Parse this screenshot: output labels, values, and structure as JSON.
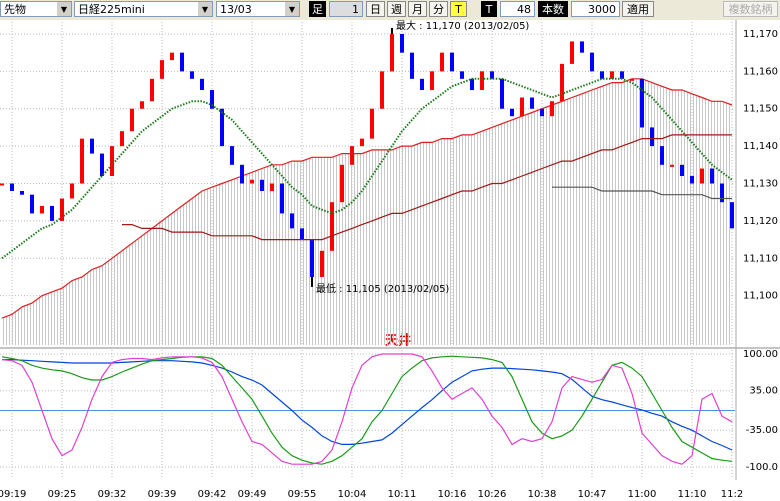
{
  "toolbar": {
    "market": "先物",
    "symbol": "日経225mini",
    "contract": "13/03",
    "bar_label": "足",
    "bar_size": "1",
    "day": "日",
    "week": "週",
    "month": "月",
    "minute": "分",
    "tick": "T",
    "tick2": "T",
    "tick_count": "48",
    "count_label": "本数",
    "count": "3000",
    "apply": "適用",
    "multi": "複数銘柄"
  },
  "chart_data": [
    {
      "type": "combo",
      "categories": [
        null,
        "09:19",
        null,
        null,
        null,
        null,
        "09:25",
        null,
        null,
        null,
        null,
        "09:32",
        null,
        null,
        null,
        null,
        "09:39",
        null,
        null,
        null,
        null,
        "09:42",
        null,
        null,
        null,
        "09:49",
        null,
        null,
        null,
        null,
        "09:55",
        null,
        null,
        null,
        null,
        "10:04",
        null,
        null,
        null,
        null,
        "10:11",
        null,
        null,
        null,
        null,
        "10:16",
        null,
        null,
        null,
        "10:26",
        null,
        null,
        null,
        null,
        "10:38",
        null,
        null,
        null,
        null,
        "10:47",
        null,
        null,
        null,
        null,
        "11:00",
        null,
        null,
        null,
        null,
        "11:10",
        null,
        null,
        null,
        "11:2"
      ],
      "ylim": [
        11086.8,
        11173.2
      ],
      "yticks": [
        {
          "value": 11170,
          "label": "11,170"
        },
        {
          "value": 11160,
          "label": "11,160"
        },
        {
          "value": 11150,
          "label": "11,150"
        },
        {
          "value": 11140,
          "label": "11,140"
        },
        {
          "value": 11130,
          "label": "11,130"
        },
        {
          "value": 11120,
          "label": "11,120"
        },
        {
          "value": 11110,
          "label": "11,110"
        },
        {
          "value": 11100,
          "label": "11,100"
        }
      ],
      "grid": true,
      "series": [
        {
          "type": "candle",
          "up_color": "#ff0000",
          "down_color": "#0000ff",
          "values": [
            11130,
            11128,
            11127,
            11122,
            11124,
            11120,
            11126,
            11130,
            11142,
            11138,
            11132,
            11140,
            11144,
            11150,
            11152,
            11158,
            11163,
            11165,
            11160,
            11158,
            11155,
            11150,
            11140,
            11135,
            11130,
            11131,
            11128,
            11130,
            11122,
            11118,
            11115,
            11105,
            11112,
            11125,
            11135,
            11140,
            11142,
            11150,
            11160,
            11170,
            11165,
            11158,
            11155,
            11160,
            11165,
            11160,
            11158,
            11155,
            11160,
            11158,
            11150,
            11148,
            11153,
            11150,
            11148,
            11152,
            11162,
            11168,
            11165,
            11160,
            11158,
            11160,
            11158,
            11158,
            11145,
            11140,
            11135,
            11135,
            11132,
            11130,
            11134,
            11130,
            11125,
            11118
          ]
        },
        {
          "type": "line",
          "color": "#1a7a1a",
          "dash": "dotted",
          "values": [
            11110,
            11112,
            11114,
            11116,
            11118,
            11119,
            11121,
            11123,
            11126,
            11129,
            11132,
            11135,
            11138,
            11141,
            11144,
            11146,
            11148,
            11150,
            11151,
            11152,
            11152,
            11151,
            11149,
            11147,
            11144,
            11141,
            11138,
            11135,
            11132,
            11129,
            11127,
            11124,
            11123,
            11122,
            11123,
            11125,
            11128,
            11132,
            11136,
            11140,
            11144,
            11147,
            11150,
            11152,
            11154,
            11156,
            11157,
            11158,
            11158,
            11158,
            11158,
            11157,
            11156,
            11155,
            11154,
            11153,
            11154,
            11155,
            11156,
            11157,
            11158,
            11158,
            11158,
            11157,
            11155,
            11153,
            11150,
            11147,
            11144,
            11141,
            11138,
            11135,
            11133,
            11131
          ]
        },
        {
          "type": "line",
          "color": "#e02020",
          "area": true,
          "values": [
            11094,
            11095,
            11097,
            11098,
            11100,
            11101,
            11102,
            11104,
            11105,
            11107,
            11108,
            11110,
            11112,
            11114,
            11116,
            11118,
            11120,
            11122,
            11124,
            11126,
            11128,
            11129,
            11130,
            11131,
            11132,
            11133,
            11134,
            11135,
            11135,
            11136,
            11136,
            11137,
            11137,
            11137,
            11138,
            11138,
            11138,
            11139,
            11139,
            11139,
            11140,
            11140,
            11141,
            11141,
            11142,
            11142,
            11143,
            11143,
            11144,
            11145,
            11146,
            11147,
            11148,
            11149,
            11150,
            11151,
            11152,
            11153,
            11154,
            11155,
            11156,
            11157,
            11157,
            11158,
            11158,
            11157,
            11156,
            11155,
            11155,
            11154,
            11153,
            11152,
            11152,
            11151
          ]
        },
        {
          "type": "line",
          "color": "#a01818",
          "values": [
            null,
            null,
            null,
            null,
            null,
            null,
            null,
            null,
            null,
            null,
            null,
            null,
            11119,
            11119,
            11118,
            11118,
            11118,
            11117,
            11117,
            11117,
            11117,
            11116,
            11116,
            11116,
            11116,
            11116,
            11115,
            11115,
            11115,
            11115,
            11115,
            11115,
            11115,
            11116,
            11117,
            11118,
            11119,
            11120,
            11121,
            11122,
            11122,
            11123,
            11124,
            11125,
            11126,
            11127,
            11128,
            11128,
            11129,
            11130,
            11130,
            11131,
            11132,
            11133,
            11134,
            11135,
            11136,
            11136,
            11137,
            11138,
            11139,
            11139,
            11140,
            11141,
            11142,
            11142,
            11142,
            11143,
            11143,
            11143,
            11143,
            11143,
            11143,
            11143
          ]
        },
        {
          "type": "line",
          "color": "#555555",
          "values": [
            null,
            null,
            null,
            null,
            null,
            null,
            null,
            null,
            null,
            null,
            null,
            null,
            null,
            null,
            null,
            null,
            null,
            null,
            null,
            null,
            null,
            null,
            null,
            null,
            null,
            null,
            null,
            null,
            null,
            null,
            null,
            null,
            null,
            null,
            null,
            null,
            null,
            null,
            null,
            null,
            null,
            null,
            null,
            null,
            null,
            null,
            null,
            null,
            null,
            null,
            null,
            null,
            null,
            null,
            null,
            11129,
            11129,
            11129,
            11129,
            11129,
            11128,
            11128,
            11128,
            11128,
            11128,
            11128,
            11127,
            11127,
            11127,
            11127,
            11127,
            11126,
            11126,
            11126
          ]
        }
      ],
      "annotations": [
        {
          "text": "最大 : 11,170 (2013/02/05)",
          "value": 11170
        },
        {
          "text": "最低 : 11,105 (2013/02/05)",
          "value": 11105
        }
      ]
    },
    {
      "type": "line",
      "categories": [
        null,
        "09:19",
        null,
        null,
        null,
        null,
        "09:25",
        null,
        null,
        null,
        null,
        "09:32",
        null,
        null,
        null,
        null,
        "09:39",
        null,
        null,
        null,
        null,
        "09:42",
        null,
        null,
        null,
        "09:49",
        null,
        null,
        null,
        null,
        "09:55",
        null,
        null,
        null,
        null,
        "10:04",
        null,
        null,
        null,
        null,
        "10:11",
        null,
        null,
        null,
        null,
        "10:16",
        null,
        null,
        null,
        "10:26",
        null,
        null,
        null,
        null,
        "10:38",
        null,
        null,
        null,
        null,
        "10:47",
        null,
        null,
        null,
        null,
        "11:00",
        null,
        null,
        null,
        null,
        "11:10",
        null,
        null,
        null,
        "11:2"
      ],
      "ylim": [
        -119.5,
        107
      ],
      "yticks": [
        {
          "value": 100,
          "label": "100.00"
        },
        {
          "value": 35,
          "label": "35.00"
        },
        {
          "value": -35,
          "label": "-35.00"
        },
        {
          "value": -100,
          "label": "-100.0"
        }
      ],
      "grid": true,
      "reference_line": 0,
      "series": [
        {
          "type": "line",
          "color": "#0044dd",
          "values": [
            90,
            90,
            89,
            88,
            87,
            86,
            85,
            84,
            84,
            84,
            84,
            84,
            85,
            86,
            87,
            88,
            88,
            88,
            87,
            86,
            84,
            80,
            75,
            68,
            60,
            54,
            45,
            30,
            15,
            0,
            -17,
            -30,
            -45,
            -55,
            -60,
            -60,
            -58,
            -55,
            -52,
            -40,
            -25,
            -10,
            5,
            19,
            35,
            50,
            60,
            70,
            73,
            75,
            75,
            74,
            73,
            72,
            70,
            68,
            65,
            55,
            40,
            25,
            19,
            15,
            10,
            5,
            1,
            -5,
            -10,
            -20,
            -28,
            -35,
            -45,
            -55,
            -62,
            -70
          ]
        },
        {
          "type": "line",
          "color": "#1a9a1a",
          "values": [
            95,
            92,
            88,
            80,
            75,
            72,
            70,
            65,
            58,
            54,
            54,
            60,
            68,
            75,
            82,
            88,
            90,
            92,
            94,
            95,
            95,
            92,
            80,
            60,
            40,
            20,
            -10,
            -40,
            -65,
            -80,
            -88,
            -93,
            -95,
            -90,
            -80,
            -65,
            -50,
            -20,
            0,
            30,
            60,
            75,
            88,
            93,
            95,
            96,
            95,
            94,
            93,
            90,
            85,
            60,
            20,
            -20,
            -40,
            -50,
            -45,
            -35,
            -10,
            20,
            50,
            80,
            85,
            75,
            60,
            30,
            0,
            -30,
            -55,
            -65,
            -75,
            -85,
            -88,
            -90
          ]
        },
        {
          "type": "line",
          "color": "#e040d0",
          "values": [
            90,
            88,
            80,
            50,
            0,
            -50,
            -80,
            -70,
            -30,
            20,
            60,
            85,
            90,
            92,
            92,
            90,
            93,
            95,
            95,
            95,
            93,
            85,
            60,
            20,
            -20,
            -55,
            -60,
            -75,
            -90,
            -95,
            -95,
            -95,
            -90,
            -70,
            -20,
            40,
            80,
            95,
            100,
            100,
            100,
            100,
            95,
            70,
            40,
            20,
            30,
            40,
            20,
            -10,
            -30,
            -60,
            -50,
            -55,
            -50,
            -20,
            40,
            60,
            55,
            50,
            55,
            80,
            75,
            30,
            -40,
            -60,
            -80,
            -90,
            -95,
            -80,
            20,
            30,
            -10,
            -20
          ]
        }
      ],
      "annotations": [
        {
          "text": "天井"
        }
      ]
    }
  ]
}
